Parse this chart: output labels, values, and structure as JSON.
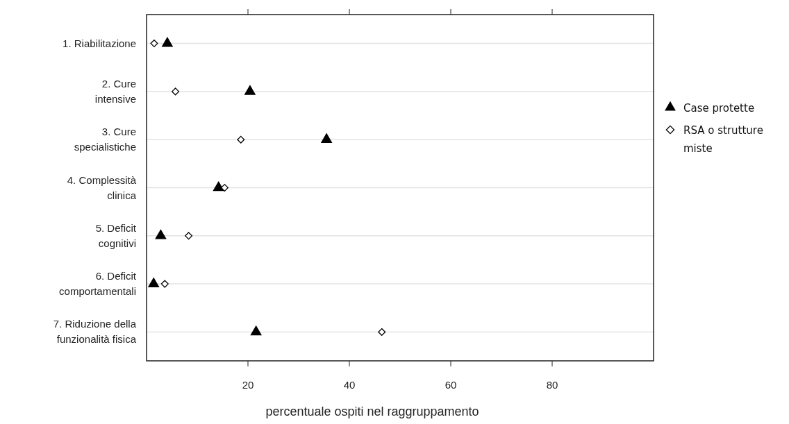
{
  "chart_data": {
    "type": "scatter",
    "orientation": "horizontal",
    "xlabel": "percentuale ospiti nel raggruppamento",
    "categories": [
      "1. Riabilitazione",
      "2. Cure\nintensive",
      "3. Cure\nspecialistiche",
      "4. Complessità\nclinica",
      "5. Deficit\ncognitivi",
      "6. Deficit\ncomportamentali",
      "7. Riduzione della\nfunzionalità fisica"
    ],
    "series": [
      {
        "name": "Case protette",
        "color": "#000000",
        "marker": "triangle",
        "values": [
          4.1,
          20.4,
          35.5,
          14.2,
          2.8,
          1.4,
          21.6
        ]
      },
      {
        "name": "RSA o strutture miste",
        "color": "#000000",
        "marker": "diamond",
        "values": [
          1.5,
          5.7,
          18.6,
          15.4,
          8.3,
          3.6,
          46.4
        ]
      }
    ],
    "xlim": [
      0,
      100
    ],
    "xticks": [
      20,
      40,
      60,
      80
    ],
    "grid": "y",
    "legend": "right"
  }
}
